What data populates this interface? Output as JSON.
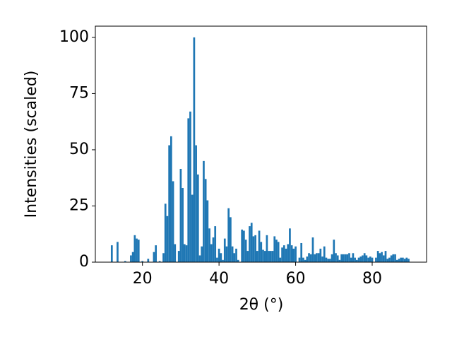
{
  "chart_data": {
    "type": "bar",
    "xlabel": "2θ (°)",
    "ylabel": "Intensities (scaled)",
    "color": "#1f77b4",
    "bar_width": 0.5,
    "xlim": [
      7.7,
      94.2
    ],
    "ylim": [
      0,
      105
    ],
    "xticks": [
      20,
      40,
      60,
      80
    ],
    "yticks": [
      0,
      25,
      50,
      75,
      100
    ],
    "x": [
      12,
      13.5,
      15.5,
      17,
      17.5,
      18,
      18.5,
      19,
      20,
      21.5,
      23,
      23.5,
      24.5,
      25.5,
      26,
      26.5,
      27,
      27.5,
      28,
      28.5,
      29.5,
      30,
      30.5,
      31,
      31.5,
      32,
      32.5,
      33,
      33.5,
      34,
      34.5,
      35,
      35.5,
      36,
      36.5,
      37,
      37.5,
      38,
      38.5,
      39,
      39.5,
      40,
      40.5,
      41,
      41.5,
      42,
      42.5,
      43,
      43.5,
      44,
      44.5,
      45,
      46,
      46.5,
      47,
      47.5,
      48,
      48.5,
      49,
      49.5,
      50,
      50.5,
      51,
      51.5,
      52,
      52.5,
      53,
      53.5,
      54,
      54.5,
      55,
      55.5,
      56,
      56.5,
      57,
      57.5,
      58,
      58.5,
      59,
      59.5,
      60,
      61,
      61.5,
      62,
      62.5,
      63,
      63.5,
      64,
      64.5,
      65,
      65.5,
      66,
      66.5,
      67,
      67.5,
      68,
      68.5,
      69,
      69.5,
      70,
      70.5,
      71,
      71.5,
      72,
      72.5,
      73,
      73.5,
      74,
      74.5,
      75,
      75.5,
      76,
      76.5,
      77,
      77.5,
      78,
      78.5,
      79,
      79.5,
      80,
      81,
      81.5,
      82,
      82.5,
      83,
      83.5,
      84,
      84.5,
      85,
      85.5,
      86,
      86.5,
      87,
      87.5,
      88,
      88.5,
      89,
      89.5
    ],
    "values": [
      7.5,
      9,
      0.5,
      3,
      4.5,
      12,
      10.5,
      10,
      0.5,
      1.5,
      4.5,
      7.5,
      0.5,
      4,
      26,
      20.5,
      52,
      56,
      36,
      8,
      5,
      41.5,
      33,
      8,
      7.5,
      64,
      67,
      30,
      100,
      52,
      39,
      3,
      7,
      45,
      37,
      27.5,
      15,
      8,
      11,
      16,
      2,
      6,
      4,
      1,
      10.5,
      7,
      24,
      20,
      7,
      4,
      6,
      1,
      14.5,
      14,
      10,
      5,
      16,
      17.5,
      11.5,
      12,
      5,
      14,
      9,
      5.5,
      5,
      12,
      5,
      5,
      5,
      11.5,
      10,
      9,
      2,
      6.5,
      7.5,
      6,
      8,
      15,
      7.5,
      6,
      7,
      2,
      8.5,
      2,
      1,
      2.5,
      4,
      3.5,
      11,
      3.5,
      4,
      4,
      6,
      2.5,
      7,
      2,
      1.5,
      1.5,
      3.5,
      10,
      4,
      3,
      1,
      3.5,
      3.5,
      3.5,
      3.5,
      4,
      2,
      4,
      2,
      1,
      2,
      2.5,
      3,
      4,
      3,
      2,
      2.5,
      2,
      2,
      5,
      4,
      4.5,
      3,
      5,
      1.5,
      2,
      3,
      3.5,
      3.5,
      1,
      1.5,
      2,
      2,
      1.5,
      2,
      1.5
    ]
  }
}
